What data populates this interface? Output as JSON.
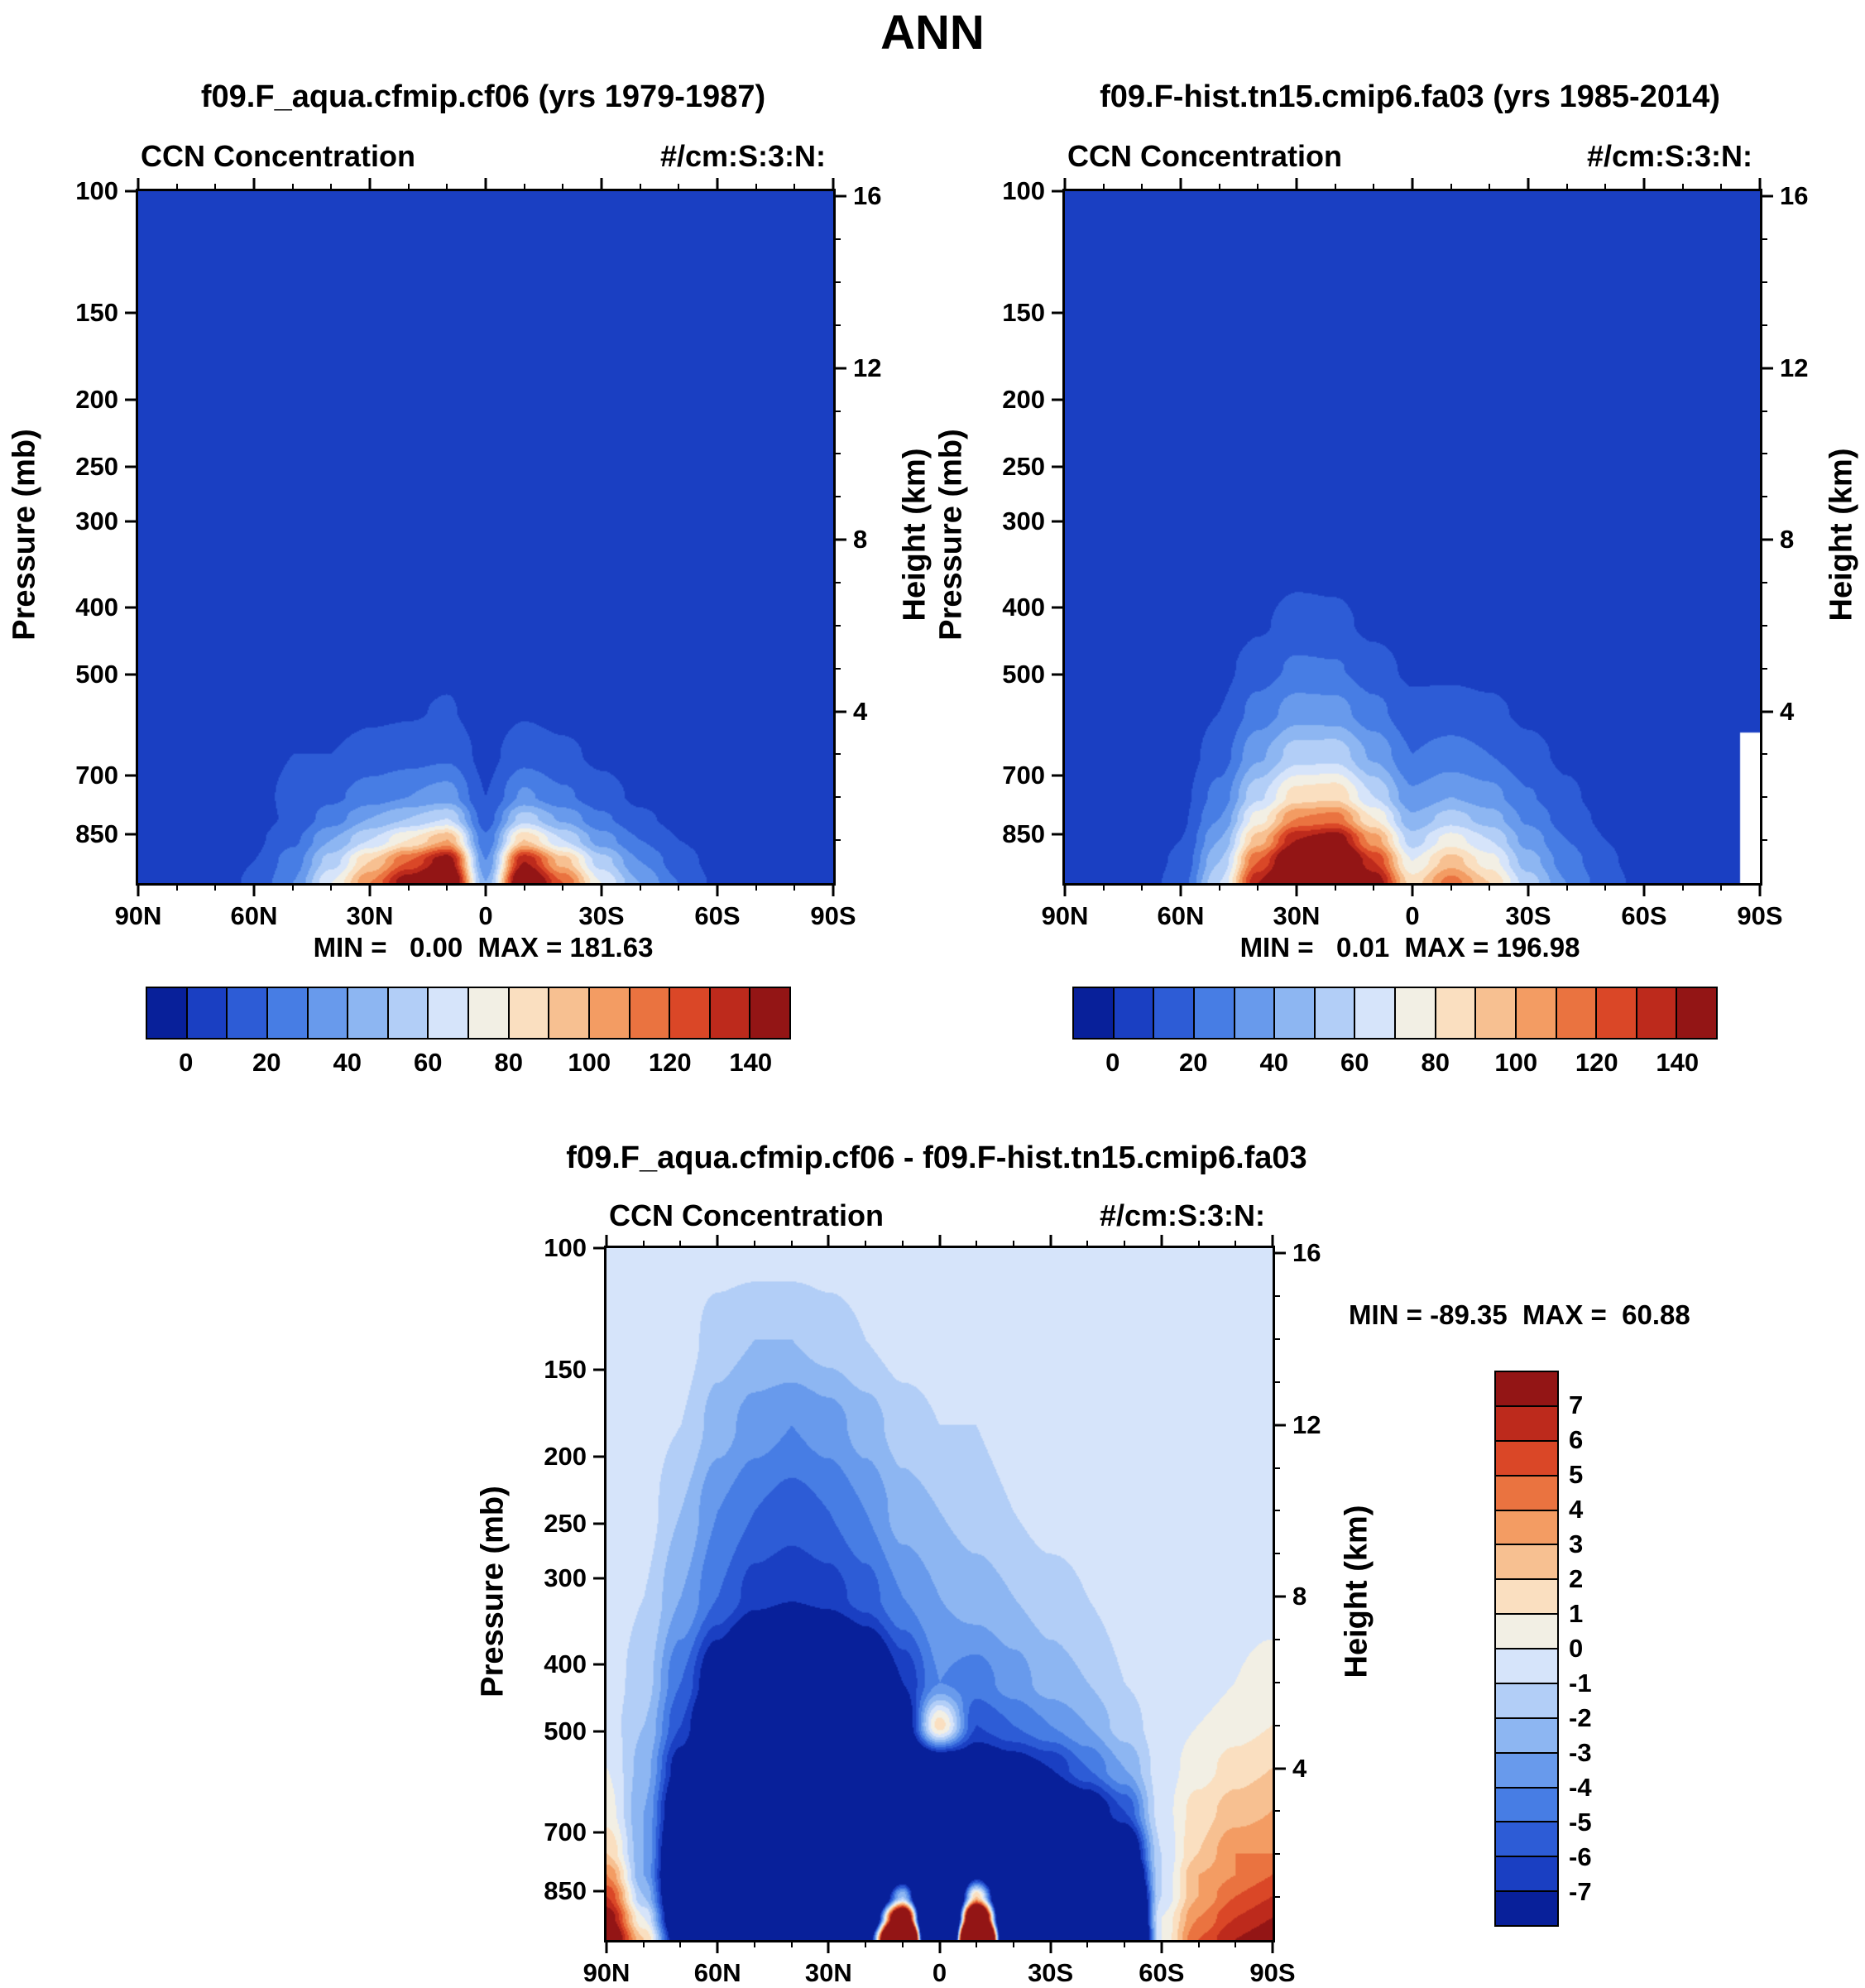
{
  "page": {
    "title": "ANN"
  },
  "panels": [
    {
      "id": "aqua",
      "title": "f09.F_aqua.cfmip.cf06 (yrs 1979-1987)",
      "field_label": "CCN Concentration",
      "units": "#/cm:S:3:N:",
      "minmax": "MIN =   0.00  MAX = 181.63"
    },
    {
      "id": "hist",
      "title": "f09.F-hist.tn15.cmip6.fa03 (yrs 1985-2014)",
      "field_label": "CCN Concentration",
      "units": "#/cm:S:3:N:",
      "minmax": "MIN =   0.01  MAX = 196.98"
    },
    {
      "id": "diff",
      "title": "f09.F_aqua.cfmip.cf06 - f09.F-hist.tn15.cmip6.fa03",
      "field_label": "CCN Concentration",
      "units": "#/cm:S:3:N:",
      "minmax": "MIN = -89.35  MAX =  60.88"
    }
  ],
  "axes": {
    "pressure_label": "Pressure (mb)",
    "height_label": "Height (km)",
    "h_top": 16.12,
    "pressure_ticks": [
      {
        "label": "100",
        "km": 16.12
      },
      {
        "label": "150",
        "km": 13.28
      },
      {
        "label": "200",
        "km": 11.27
      },
      {
        "label": "250",
        "km": 9.7
      },
      {
        "label": "300",
        "km": 8.43
      },
      {
        "label": "400",
        "km": 6.42
      },
      {
        "label": "500",
        "km": 4.85
      },
      {
        "label": "700",
        "km": 2.5
      },
      {
        "label": "850",
        "km": 1.14
      }
    ],
    "height_ticks": [
      {
        "label": "16",
        "km": 16
      },
      {
        "label": "12",
        "km": 12
      },
      {
        "label": "8",
        "km": 8
      },
      {
        "label": "4",
        "km": 4
      }
    ],
    "lat_ticks": [
      {
        "label": "90N",
        "lat": 90
      },
      {
        "label": "60N",
        "lat": 60
      },
      {
        "label": "30N",
        "lat": 30
      },
      {
        "label": "0",
        "lat": 0
      },
      {
        "label": "30S",
        "lat": -30
      },
      {
        "label": "60S",
        "lat": -60
      },
      {
        "label": "90S",
        "lat": -90
      }
    ],
    "lat_minor_step": 10
  },
  "palette": [
    "#08209a",
    "#1a3fc2",
    "#2d5cd6",
    "#477de4",
    "#689aec",
    "#8db6f2",
    "#b2cef7",
    "#d6e4fa",
    "#f2efe4",
    "#fadfc0",
    "#f7c091",
    "#f39c63",
    "#ea7340",
    "#da4727",
    "#bd2a1c",
    "#931515"
  ],
  "colorbar": {
    "labels": [
      "0",
      "20",
      "40",
      "60",
      "80",
      "100",
      "120",
      "140"
    ]
  },
  "colorbar_diff": {
    "labels": [
      "7",
      "6",
      "5",
      "4",
      "3",
      "2",
      "1",
      "0",
      "-1",
      "-2",
      "-3",
      "-4",
      "-5",
      "-6",
      "-7"
    ]
  },
  "chart_data": [
    {
      "id": "aqua",
      "type": "heatmap",
      "title": "f09.F_aqua.cfmip.cf06 (yrs 1979-1987) CCN Concentration (#/cm^3)",
      "min": 0.0,
      "max": 181.63,
      "levels": [
        0,
        10,
        20,
        30,
        40,
        50,
        60,
        70,
        80,
        90,
        100,
        110,
        120,
        130,
        140
      ],
      "lats": [
        90,
        80,
        70,
        60,
        50,
        40,
        30,
        20,
        10,
        0,
        -10,
        -20,
        -30,
        -40,
        -50,
        -60,
        -70,
        -80,
        -90
      ],
      "heights_km": [
        0,
        0.5,
        1,
        1.5,
        2,
        3,
        4,
        5,
        6,
        8,
        12,
        16.2
      ],
      "values": [
        [
          3,
          3,
          5,
          12,
          30,
          70,
          110,
          150,
          175,
          40,
          170,
          120,
          70,
          40,
          20,
          8,
          4,
          3,
          3
        ],
        [
          3,
          3,
          5,
          10,
          25,
          55,
          90,
          120,
          150,
          30,
          140,
          95,
          55,
          30,
          15,
          6,
          3,
          3,
          3
        ],
        [
          2,
          3,
          4,
          8,
          18,
          40,
          60,
          80,
          100,
          22,
          90,
          60,
          35,
          20,
          10,
          5,
          3,
          2,
          2
        ],
        [
          2,
          2,
          4,
          6,
          12,
          25,
          40,
          50,
          60,
          15,
          55,
          38,
          22,
          12,
          7,
          4,
          2,
          2,
          2
        ],
        [
          2,
          2,
          3,
          5,
          14,
          18,
          25,
          30,
          35,
          10,
          32,
          22,
          14,
          8,
          5,
          3,
          2,
          2,
          2
        ],
        [
          1,
          2,
          2,
          4,
          10,
          10,
          14,
          16,
          18,
          7,
          16,
          12,
          8,
          5,
          3,
          2,
          1,
          1,
          1
        ],
        [
          1,
          1,
          2,
          3,
          4,
          6,
          8,
          9,
          11,
          5,
          9,
          7,
          5,
          3,
          2,
          1,
          1,
          1,
          1
        ],
        [
          1,
          1,
          1,
          2,
          3,
          4,
          5,
          6,
          8,
          4,
          5,
          4,
          3,
          2,
          1,
          1,
          1,
          1,
          1
        ],
        [
          1,
          1,
          1,
          1,
          2,
          2,
          3,
          3,
          3,
          2,
          3,
          2,
          2,
          1,
          1,
          1,
          1,
          1,
          1
        ],
        [
          1,
          1,
          1,
          1,
          1,
          1,
          1,
          1,
          1,
          1,
          1,
          1,
          1,
          1,
          1,
          1,
          1,
          1,
          1
        ],
        [
          0.5,
          0.5,
          0.5,
          0.5,
          0.5,
          0.5,
          0.5,
          0.5,
          0.5,
          0.5,
          0.5,
          0.5,
          0.5,
          0.5,
          0.5,
          0.5,
          0.5,
          0.5,
          0.5
        ],
        [
          0.5,
          0.5,
          0.5,
          0.5,
          0.5,
          0.5,
          0.5,
          0.5,
          0.5,
          0.5,
          0.5,
          0.5,
          0.5,
          0.5,
          0.5,
          0.5,
          0.5,
          0.5,
          0.5
        ]
      ]
    },
    {
      "id": "hist",
      "type": "heatmap",
      "title": "f09.F-hist.tn15.cmip6.fa03 (yrs 1985-2014) CCN Concentration (#/cm^3)",
      "min": 0.01,
      "max": 196.98,
      "levels": [
        0,
        10,
        20,
        30,
        40,
        50,
        60,
        70,
        80,
        90,
        100,
        110,
        120,
        130,
        140
      ],
      "lats": [
        90,
        80,
        70,
        60,
        50,
        40,
        30,
        20,
        10,
        0,
        -10,
        -20,
        -30,
        -40,
        -50,
        -60,
        -70,
        -80,
        -90
      ],
      "heights_km": [
        0,
        0.5,
        1,
        1.5,
        2,
        3,
        4,
        5,
        6,
        8,
        12,
        16.2
      ],
      "values": [
        [
          2,
          3,
          5,
          15,
          60,
          140,
          190,
          195,
          150,
          85,
          115,
          90,
          55,
          30,
          15,
          6,
          3,
          2,
          null
        ],
        [
          2,
          3,
          5,
          12,
          50,
          120,
          170,
          180,
          130,
          70,
          95,
          75,
          45,
          25,
          12,
          5,
          3,
          2,
          null
        ],
        [
          2,
          3,
          4,
          10,
          40,
          95,
          140,
          150,
          105,
          55,
          75,
          60,
          36,
          20,
          10,
          5,
          2,
          2,
          null
        ],
        [
          2,
          2,
          4,
          8,
          30,
          75,
          110,
          115,
          80,
          42,
          55,
          45,
          28,
          15,
          8,
          4,
          2,
          2,
          null
        ],
        [
          2,
          2,
          3,
          7,
          24,
          58,
          85,
          88,
          60,
          32,
          40,
          34,
          21,
          12,
          6,
          3,
          2,
          2,
          null
        ],
        [
          1,
          2,
          3,
          5,
          15,
          38,
          55,
          56,
          38,
          20,
          24,
          20,
          13,
          8,
          4,
          2,
          1,
          1,
          null
        ],
        [
          1,
          1,
          2,
          4,
          10,
          24,
          35,
          34,
          23,
          13,
          14,
          12,
          8,
          5,
          3,
          2,
          1,
          1,
          1
        ],
        [
          1,
          1,
          2,
          3,
          7,
          15,
          22,
          21,
          14,
          8,
          8,
          7,
          5,
          3,
          2,
          1,
          1,
          1,
          1
        ],
        [
          1,
          1,
          1,
          2,
          4,
          9,
          13,
          12,
          8,
          5,
          5,
          4,
          3,
          2,
          1,
          1,
          1,
          1,
          1
        ],
        [
          1,
          1,
          1,
          1,
          2,
          3,
          4,
          4,
          3,
          2,
          2,
          2,
          1,
          1,
          1,
          1,
          1,
          1,
          1
        ],
        [
          0.5,
          0.5,
          0.5,
          0.5,
          0.5,
          0.5,
          0.5,
          0.5,
          0.5,
          0.5,
          0.5,
          0.5,
          0.5,
          0.5,
          0.5,
          0.5,
          0.5,
          0.5,
          0.5
        ],
        [
          0.5,
          0.5,
          0.5,
          0.5,
          0.5,
          0.5,
          0.5,
          0.5,
          0.5,
          0.5,
          0.5,
          0.5,
          0.5,
          0.5,
          0.5,
          0.5,
          0.5,
          0.5,
          0.5
        ]
      ]
    },
    {
      "id": "diff",
      "type": "heatmap",
      "title": "f09.F_aqua.cfmip.cf06 - f09.F-hist.tn15.cmip6.fa03 CCN Concentration (#/cm^3)",
      "min": -89.35,
      "max": 60.88,
      "levels": [
        -7,
        -6,
        -5,
        -4,
        -3,
        -2,
        -1,
        0,
        1,
        2,
        3,
        4,
        5,
        6,
        7
      ],
      "lats": [
        90,
        80,
        70,
        60,
        50,
        40,
        30,
        20,
        10,
        0,
        -10,
        -20,
        -30,
        -40,
        -50,
        -60,
        -70,
        -80,
        -90
      ],
      "heights_km": [
        0,
        0.5,
        1,
        1.5,
        2,
        3,
        4,
        5,
        6,
        8,
        10,
        12,
        14,
        16.2
      ],
      "values": [
        [
          10,
          2,
          -10,
          -35,
          -65,
          -78,
          -55,
          -12,
          40,
          -55,
          48,
          -35,
          -45,
          -40,
          -30,
          0,
          5,
          7,
          8
        ],
        [
          8,
          0,
          -12,
          -35,
          -60,
          -72,
          -52,
          -18,
          15,
          -45,
          20,
          -30,
          -40,
          -35,
          -25,
          0,
          4,
          6,
          7
        ],
        [
          6,
          -2,
          -13,
          -33,
          -55,
          -65,
          -48,
          -22,
          -2,
          -35,
          2,
          -25,
          -32,
          -28,
          -20,
          -1,
          3,
          5,
          6
        ],
        [
          4,
          -3,
          -13,
          -30,
          -48,
          -58,
          -44,
          -24,
          -10,
          -26,
          -8,
          -20,
          -25,
          -22,
          -15,
          -1,
          3,
          4,
          5
        ],
        [
          2,
          -3,
          -12,
          -27,
          -42,
          -50,
          -40,
          -24,
          -13,
          -20,
          -12,
          -16,
          -18,
          -16,
          -11,
          -1,
          2,
          4,
          4
        ],
        [
          0.5,
          -3,
          -10,
          -21,
          -32,
          -39,
          -33,
          -22,
          -14,
          -15,
          -12,
          -11,
          -11,
          -9,
          -6,
          -0.5,
          1.5,
          2.5,
          3
        ],
        [
          0,
          -2.5,
          -8,
          -16,
          -25,
          -30,
          -26,
          -18,
          -12,
          -11,
          -9,
          -8,
          -7,
          -5,
          -3,
          -0.5,
          0.5,
          1.5,
          2
        ],
        [
          -0.5,
          -2,
          -6,
          -12,
          -19,
          -23,
          -20,
          -14,
          -9,
          1.5,
          -6,
          -5,
          -4,
          -3,
          -1.5,
          -0.5,
          0,
          0.5,
          1
        ],
        [
          -0.5,
          -1.5,
          -5,
          -9,
          -14,
          -17,
          -15,
          -11,
          -7,
          -4,
          -4.5,
          -3.5,
          -2.5,
          -2,
          -1,
          -0.5,
          -0.5,
          0,
          0.5
        ],
        [
          -0.5,
          -1,
          -3,
          -5,
          -6.5,
          -6.9,
          -6.5,
          -5.5,
          -4,
          -3,
          -2.5,
          -2,
          -1.5,
          -1,
          -0.5,
          -0.5,
          -0.5,
          -0.5,
          -0.5
        ],
        [
          -0.5,
          -0.5,
          -2,
          -4,
          -5,
          -5.5,
          -5,
          -4,
          -2.5,
          -2,
          -1.5,
          -1,
          -0.5,
          -0.5,
          -0.5,
          -0.5,
          -0.5,
          -0.5,
          -0.5
        ],
        [
          -0.5,
          -0.5,
          -1,
          -2.5,
          -3.5,
          -4,
          -3.5,
          -2.5,
          -1.5,
          -1,
          -1,
          -0.5,
          -0.5,
          -0.5,
          -0.5,
          -0.5,
          -0.5,
          -0.5,
          -0.5
        ],
        [
          -0.5,
          -0.5,
          -0.5,
          -1.5,
          -2,
          -2,
          -1.5,
          -1,
          -0.5,
          -0.5,
          -0.5,
          -0.5,
          -0.5,
          -0.5,
          -0.5,
          -0.5,
          -0.5,
          -0.5,
          -0.5
        ],
        [
          -0.5,
          -0.5,
          -0.5,
          -0.5,
          -0.5,
          -0.5,
          -0.5,
          -0.5,
          -0.5,
          -0.5,
          -0.5,
          -0.5,
          -0.5,
          -0.5,
          -0.5,
          -0.5,
          -0.5,
          -0.5,
          -0.5
        ]
      ]
    }
  ]
}
